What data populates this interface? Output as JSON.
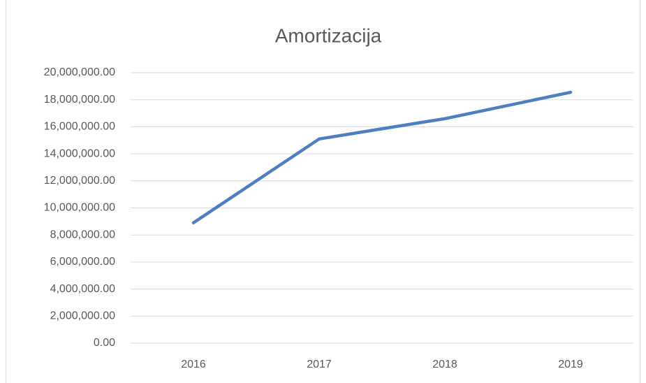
{
  "chart_data": {
    "type": "line",
    "title": "Amortizacija",
    "categories": [
      "2016",
      "2017",
      "2018",
      "2019"
    ],
    "series": [
      {
        "name": "Amortizacija",
        "color": "#4f7fbf",
        "values": [
          8900000,
          15100000,
          16600000,
          18550000
        ]
      }
    ],
    "ylim": [
      0,
      20000000
    ],
    "yticks": [
      {
        "value": 0,
        "label": "0.00"
      },
      {
        "value": 2000000,
        "label": "2,000,000.00"
      },
      {
        "value": 4000000,
        "label": "4,000,000.00"
      },
      {
        "value": 6000000,
        "label": "6,000,000.00"
      },
      {
        "value": 8000000,
        "label": "8,000,000.00"
      },
      {
        "value": 10000000,
        "label": "10,000,000.00"
      },
      {
        "value": 12000000,
        "label": "12,000,000.00"
      },
      {
        "value": 14000000,
        "label": "14,000,000.00"
      },
      {
        "value": 16000000,
        "label": "16,000,000.00"
      },
      {
        "value": 18000000,
        "label": "18,000,000.00"
      },
      {
        "value": 20000000,
        "label": "20,000,000.00"
      }
    ],
    "grid": true
  }
}
